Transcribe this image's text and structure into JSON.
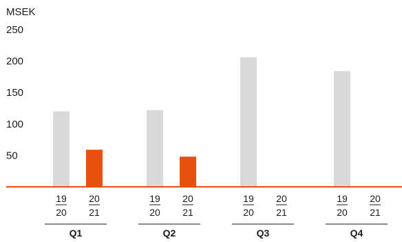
{
  "chart_data": {
    "type": "bar",
    "unit_label": "MSEK",
    "y_ticks": [
      "50",
      "100",
      "150",
      "200",
      "250"
    ],
    "ylim": [
      0,
      250
    ],
    "quarters": [
      "Q1",
      "Q2",
      "Q3",
      "Q4"
    ],
    "series": [
      {
        "fy_top": "19",
        "fy_bottom": "20",
        "color": "#d9d9d9",
        "values": [
          120,
          122,
          206,
          184
        ]
      },
      {
        "fy_top": "20",
        "fy_bottom": "21",
        "color": "#e8500e",
        "values": [
          59,
          48,
          null,
          null
        ]
      }
    ],
    "baseline_color": "#e8500e",
    "grid": false
  }
}
